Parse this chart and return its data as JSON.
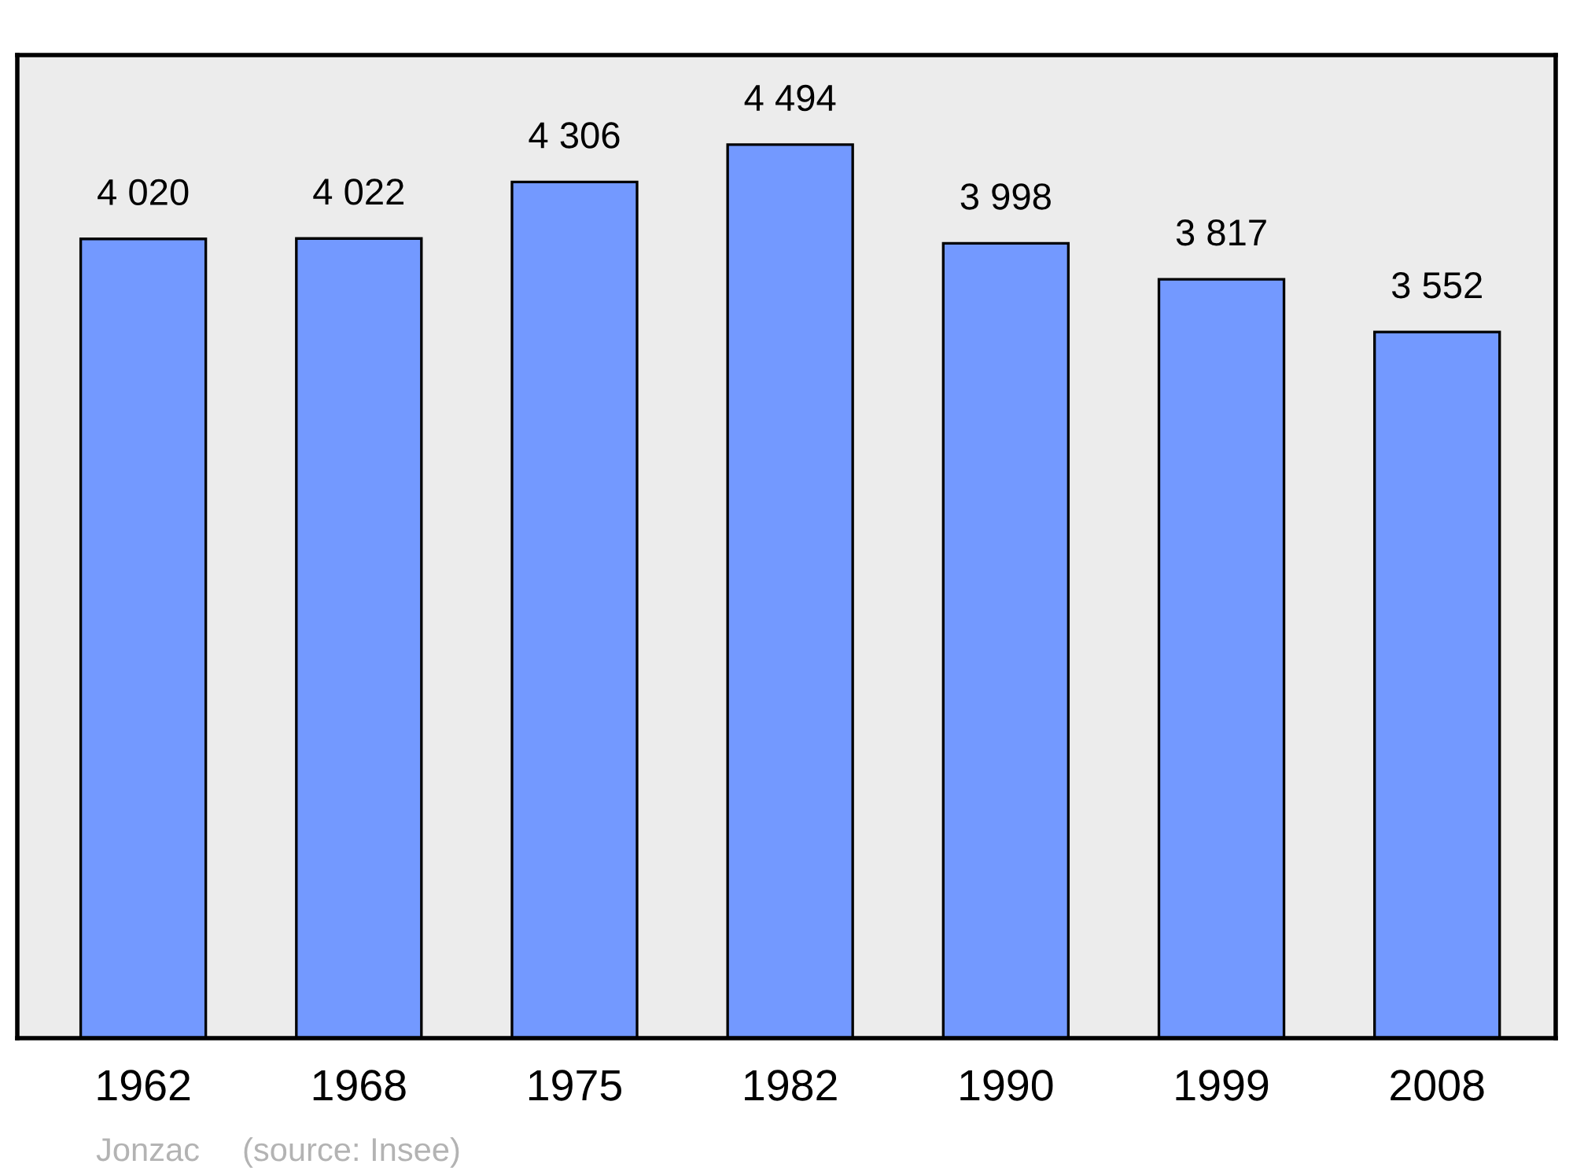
{
  "chart_data": {
    "type": "bar",
    "categories": [
      "1962",
      "1968",
      "1975",
      "1982",
      "1990",
      "1999",
      "2008"
    ],
    "values": [
      4020,
      4022,
      4306,
      4494,
      3998,
      3817,
      3552
    ],
    "value_labels": [
      "4 020",
      "4 022",
      "4 306",
      "4 494",
      "3 998",
      "3 817",
      "3 552"
    ],
    "color": "#7399ff",
    "ylim": [
      0,
      4945
    ],
    "tick_labels": "x",
    "grid": false,
    "legend": false,
    "annotations": [
      "Jonzac",
      "(source: Insee)"
    ]
  }
}
